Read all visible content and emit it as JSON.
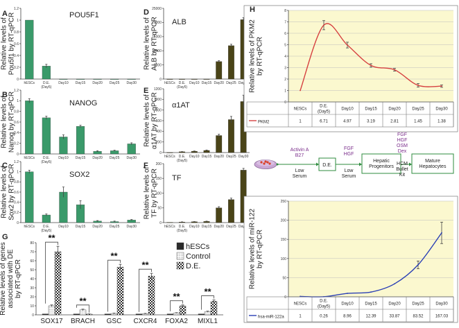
{
  "chart_data": [
    {
      "id": "A",
      "type": "bar",
      "letter": "A",
      "title": "POU5F1",
      "ylabel": [
        "Relative levels of",
        "Pou5f1 by RT-qPCR"
      ],
      "categories": [
        "hESCs",
        "D.E.",
        "Day10",
        "Day15",
        "Day20",
        "Day25",
        "Day30"
      ],
      "category_sub": [
        "",
        "(Day5)",
        "",
        "",
        "",
        "",
        ""
      ],
      "values": [
        1.0,
        0.22,
        0.0,
        0.0,
        0.0,
        0.0,
        0.0
      ],
      "errors": [
        0.0,
        0.03,
        0.0,
        0.0,
        0.0,
        0.0,
        0.0
      ],
      "ylim": [
        0,
        1.2
      ],
      "yticks": [
        "0",
        "0.2",
        "0.4",
        "0.6",
        "0.8",
        "1",
        "1.2"
      ],
      "color": "#3a9a6a"
    },
    {
      "id": "B",
      "type": "bar",
      "letter": "B",
      "title": "NANOG",
      "ylabel": [
        "Relative levels of",
        "Nanog by RT-qPCR"
      ],
      "categories": [
        "hESCs",
        "D.E.",
        "Day10",
        "Day15",
        "Day20",
        "Day25",
        "Day30"
      ],
      "category_sub": [
        "",
        "(Day5)",
        "",
        "",
        "",
        "",
        ""
      ],
      "values": [
        1.0,
        0.68,
        0.32,
        0.52,
        0.05,
        0.06,
        0.19
      ],
      "errors": [
        0.04,
        0.03,
        0.04,
        0.02,
        0.01,
        0.01,
        0.02
      ],
      "ylim": [
        0,
        1.2
      ],
      "yticks": [
        "0",
        "0.2",
        "0.4",
        "0.6",
        "0.8",
        "1",
        "1.2"
      ],
      "color": "#3a9a6a"
    },
    {
      "id": "C",
      "type": "bar",
      "letter": "C",
      "title": "SOX2",
      "ylabel": [
        "Relative levels of",
        "Sox2 by RT-qPCR"
      ],
      "categories": [
        "hESCs",
        "D.E.",
        "Day10",
        "Day15",
        "Day20",
        "Day25",
        "Day30"
      ],
      "category_sub": [
        "",
        "(Day5)",
        "",
        "",
        "",
        "",
        ""
      ],
      "values": [
        1.0,
        0.15,
        0.6,
        0.35,
        0.03,
        0.02,
        0.05
      ],
      "errors": [
        0.03,
        0.02,
        0.1,
        0.08,
        0.01,
        0.01,
        0.01
      ],
      "ylim": [
        0,
        1.2
      ],
      "yticks": [
        "0",
        "0.2",
        "0.4",
        "0.6",
        "0.8",
        "1",
        "1.2"
      ],
      "color": "#3a9a6a"
    },
    {
      "id": "D",
      "type": "bar",
      "letter": "D",
      "title": "ALB",
      "ylabel": [
        "Relative levels of",
        "ALB by RT-qPCR"
      ],
      "categories": [
        "hESCs",
        "D.E.",
        "Day10",
        "Day15",
        "Day20",
        "Day25",
        "Day30"
      ],
      "category_sub": [
        "",
        "(Day5)",
        "",
        "",
        "",
        "",
        ""
      ],
      "values": [
        0,
        0,
        0,
        0,
        6200,
        11800,
        21000
      ],
      "errors": [
        0,
        0,
        0,
        0,
        300,
        500,
        700
      ],
      "ylim": [
        0,
        25000
      ],
      "yticks": [
        "0",
        "5000",
        "10000",
        "15000",
        "20000",
        "25000"
      ],
      "color": "#4a4418"
    },
    {
      "id": "E",
      "type": "bar",
      "letter": "E",
      "title": "α1AT",
      "ylabel": [
        "Relative levels of",
        "α1AT by RT-qPCR"
      ],
      "categories": [
        "hESCs",
        "D.E.",
        "Day10",
        "Day15",
        "Day20",
        "Day25",
        "Day30"
      ],
      "category_sub": [
        "",
        "(Day5)",
        "",
        "",
        "",
        "",
        ""
      ],
      "values": [
        1,
        15,
        25,
        40,
        320,
        620,
        960
      ],
      "errors": [
        0,
        3,
        5,
        8,
        25,
        60,
        120
      ],
      "ylim": [
        0,
        1200
      ],
      "yticks": [
        "0",
        "200",
        "400",
        "600",
        "800",
        "1000",
        "1200"
      ],
      "color": "#4a4418"
    },
    {
      "id": "F",
      "type": "bar",
      "letter": "F",
      "title": "TF",
      "ylabel": [
        "Relative levels of",
        "TF by RT-qPCR"
      ],
      "categories": [
        "hESCs",
        "D.E.",
        "Day10",
        "Day15",
        "Day20",
        "Day25",
        "Day30"
      ],
      "category_sub": [
        "",
        "(Day5)",
        "",
        "",
        "",
        "",
        ""
      ],
      "values": [
        1,
        2,
        3,
        4,
        50,
        78,
        178
      ],
      "errors": [
        0,
        0.5,
        0.5,
        1,
        4,
        5,
        6
      ],
      "ylim": [
        0,
        200
      ],
      "yticks": [
        "0",
        "50",
        "100",
        "150",
        "200"
      ],
      "color": "#4a4418"
    },
    {
      "id": "G",
      "type": "bar",
      "letter": "G",
      "ylabel": [
        "Relative levels of genes",
        "associated with DE",
        "by RT-qPCR"
      ],
      "categories": [
        "SOX17",
        "BRACH",
        "GSC",
        "CXCR4",
        "FOXA2",
        "MIXL1"
      ],
      "series": [
        {
          "name": "hESCs",
          "values": [
            1,
            1,
            1,
            1,
            1,
            1
          ],
          "errors": [
            0,
            0,
            0,
            0,
            0,
            0
          ],
          "fill": "#2b2b2b"
        },
        {
          "name": "Control",
          "values": [
            10,
            5.5,
            1.5,
            1.2,
            2,
            3.5
          ],
          "errors": [
            1,
            0.8,
            0.4,
            0.4,
            0.4,
            0.6
          ],
          "fill": "dots"
        },
        {
          "name": "D.E.",
          "values": [
            70,
            0.8,
            53,
            43,
            10,
            15
          ],
          "errors": [
            6,
            0.2,
            3,
            3,
            1,
            1.5
          ],
          "fill": "checker"
        }
      ],
      "significance": "**",
      "ylim": [
        0,
        80
      ],
      "yticks": [
        "0",
        "10",
        "20",
        "30",
        "40",
        "50",
        "60",
        "70",
        "80"
      ]
    },
    {
      "id": "H",
      "type": "line",
      "letter": "H",
      "ylabel": [
        "Relative levels of PKM2",
        "by RT-qPCR"
      ],
      "categories": [
        "hESCs",
        "D.E.",
        "Day10",
        "Day15",
        "Day20",
        "Day25",
        "Day30"
      ],
      "category_sub": [
        "",
        "(Day5)",
        "",
        "",
        "",
        "",
        ""
      ],
      "series": [
        {
          "name": "PKM2",
          "values": [
            1,
            6.71,
            4.97,
            3.19,
            2.81,
            1.45,
            1.38
          ],
          "errors": [
            0,
            0.4,
            0.25,
            0.15,
            0.12,
            0.15,
            0.1
          ],
          "color": "#d64040"
        }
      ],
      "table_values": [
        "1",
        "6.71",
        "4.97",
        "3.19",
        "2.81",
        "1.45",
        "1.38"
      ],
      "ylim": [
        0,
        8
      ],
      "yticks": [
        "0",
        "1",
        "2",
        "3",
        "4",
        "5",
        "6",
        "7",
        "8"
      ],
      "background": "#fbf8cf"
    },
    {
      "id": "I",
      "type": "line",
      "ylabel": [
        "Relative levels of miR-122",
        "by RT-qPCR"
      ],
      "categories": [
        "hESCs",
        "D.E.",
        "Day10",
        "Day15",
        "Day20",
        "Day25",
        "Day30"
      ],
      "category_sub": [
        "",
        "(Day5)",
        "",
        "",
        "",
        "",
        ""
      ],
      "series": [
        {
          "name": "hsa-miR-122a",
          "values": [
            1,
            0.26,
            8.96,
            12.39,
            33.87,
            83.52,
            167.03
          ],
          "errors": [
            0,
            0,
            0,
            0,
            0,
            10,
            28
          ],
          "color": "#2a3fb5"
        }
      ],
      "table_values": [
        "1",
        "0.26",
        "8.96",
        "12.39",
        "33.87",
        "83.52",
        "167.03"
      ],
      "ylim": [
        0,
        250
      ],
      "yticks": [
        "0",
        "50",
        "100",
        "150",
        "200",
        "250"
      ],
      "background": "#fbf8cf"
    }
  ],
  "flow": {
    "factor1": [
      "Activin A",
      "B27"
    ],
    "cond1": [
      "Low",
      "Serum"
    ],
    "box1": "D.E.",
    "factor2": [
      "FGF",
      "HGF"
    ],
    "cond2": [
      "Low",
      "Serum"
    ],
    "box2": [
      "Hepatic",
      "Progenitors"
    ],
    "factor3": [
      "FGF",
      "HGF",
      "OSM",
      "Dex"
    ],
    "cond3": [
      "HCM",
      "Bullet",
      "Kit"
    ],
    "box3": [
      "Mature",
      "Hepatocytes"
    ]
  }
}
